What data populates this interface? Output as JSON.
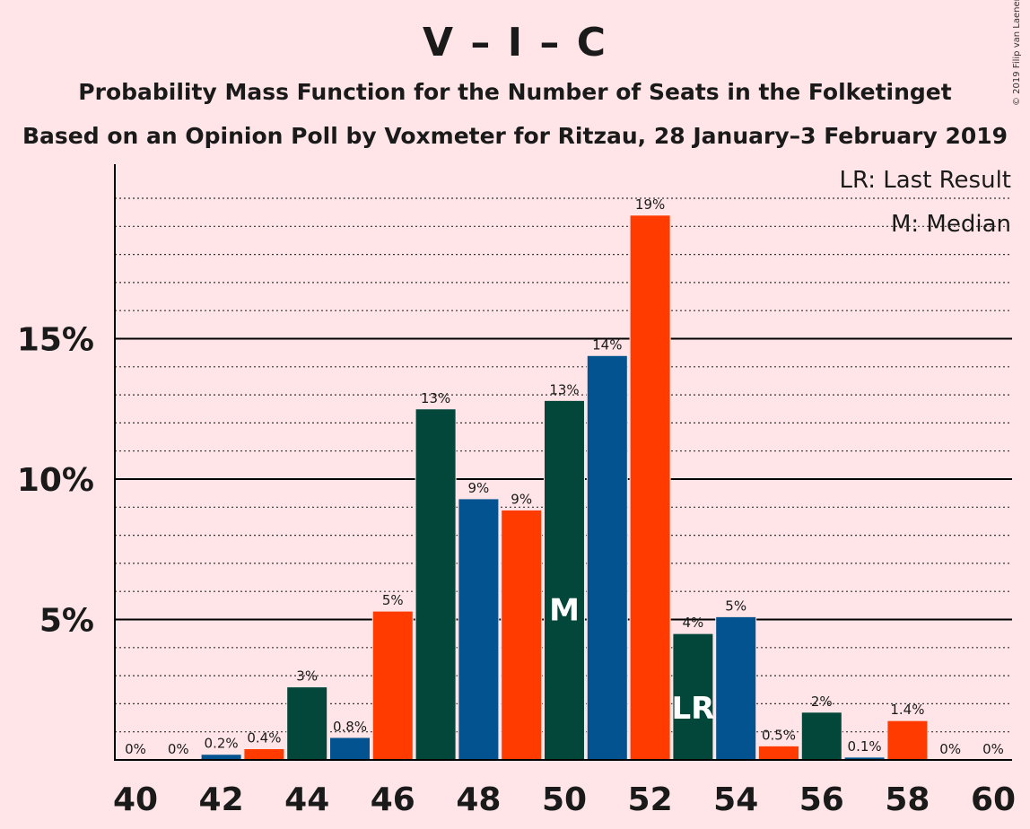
{
  "title": "V – I – C",
  "subtitle1": "Probability Mass Function for the Number of Seats in the Folketinget",
  "subtitle2": "Based on an Opinion Poll by Voxmeter for Ritzau, 28 January–3 February 2019",
  "copyright": "© 2019 Filip van Laenen",
  "legend": {
    "last_result": "LR: Last Result",
    "median": "M: Median"
  },
  "colors": {
    "background": "#FFE5E8",
    "dark_green": "#03463A",
    "blue": "#02538F",
    "orange": "#FF3B00"
  },
  "chart_data": {
    "type": "bar",
    "x": [
      40,
      41,
      42,
      43,
      44,
      45,
      46,
      47,
      48,
      49,
      50,
      51,
      52,
      53,
      54,
      55,
      56,
      57,
      58,
      59,
      60
    ],
    "values": [
      0,
      0,
      0.2,
      0.4,
      2.6,
      0.8,
      5.3,
      12.5,
      9.3,
      8.9,
      12.8,
      14.4,
      19.4,
      4.5,
      5.1,
      0.5,
      1.7,
      0.1,
      1.4,
      0,
      0
    ],
    "labels": [
      "0%",
      "0%",
      "0.2%",
      "0.4%",
      "3%",
      "0.8%",
      "5%",
      "13%",
      "9%",
      "9%",
      "13%",
      "14%",
      "19%",
      "4%",
      "5%",
      "0.5%",
      "2%",
      "0.1%",
      "1.4%",
      "0%",
      "0%"
    ],
    "bar_colors": [
      "dark_green",
      "blue",
      "blue",
      "orange",
      "dark_green",
      "blue",
      "orange",
      "dark_green",
      "blue",
      "orange",
      "dark_green",
      "blue",
      "orange",
      "dark_green",
      "blue",
      "orange",
      "dark_green",
      "blue",
      "orange",
      "dark_green",
      "blue"
    ],
    "x_tick_labels": [
      "40",
      "42",
      "44",
      "46",
      "48",
      "50",
      "52",
      "54",
      "56",
      "58",
      "60"
    ],
    "y_tick_labels": [
      "5%",
      "10%",
      "15%"
    ],
    "y_ticks": [
      5,
      10,
      15
    ],
    "ylim": [
      0,
      21.2
    ],
    "minor_grid_step": 1,
    "median_seat": 50,
    "median_marker": "M",
    "last_result_seat": 53,
    "last_result_marker": "LR"
  }
}
